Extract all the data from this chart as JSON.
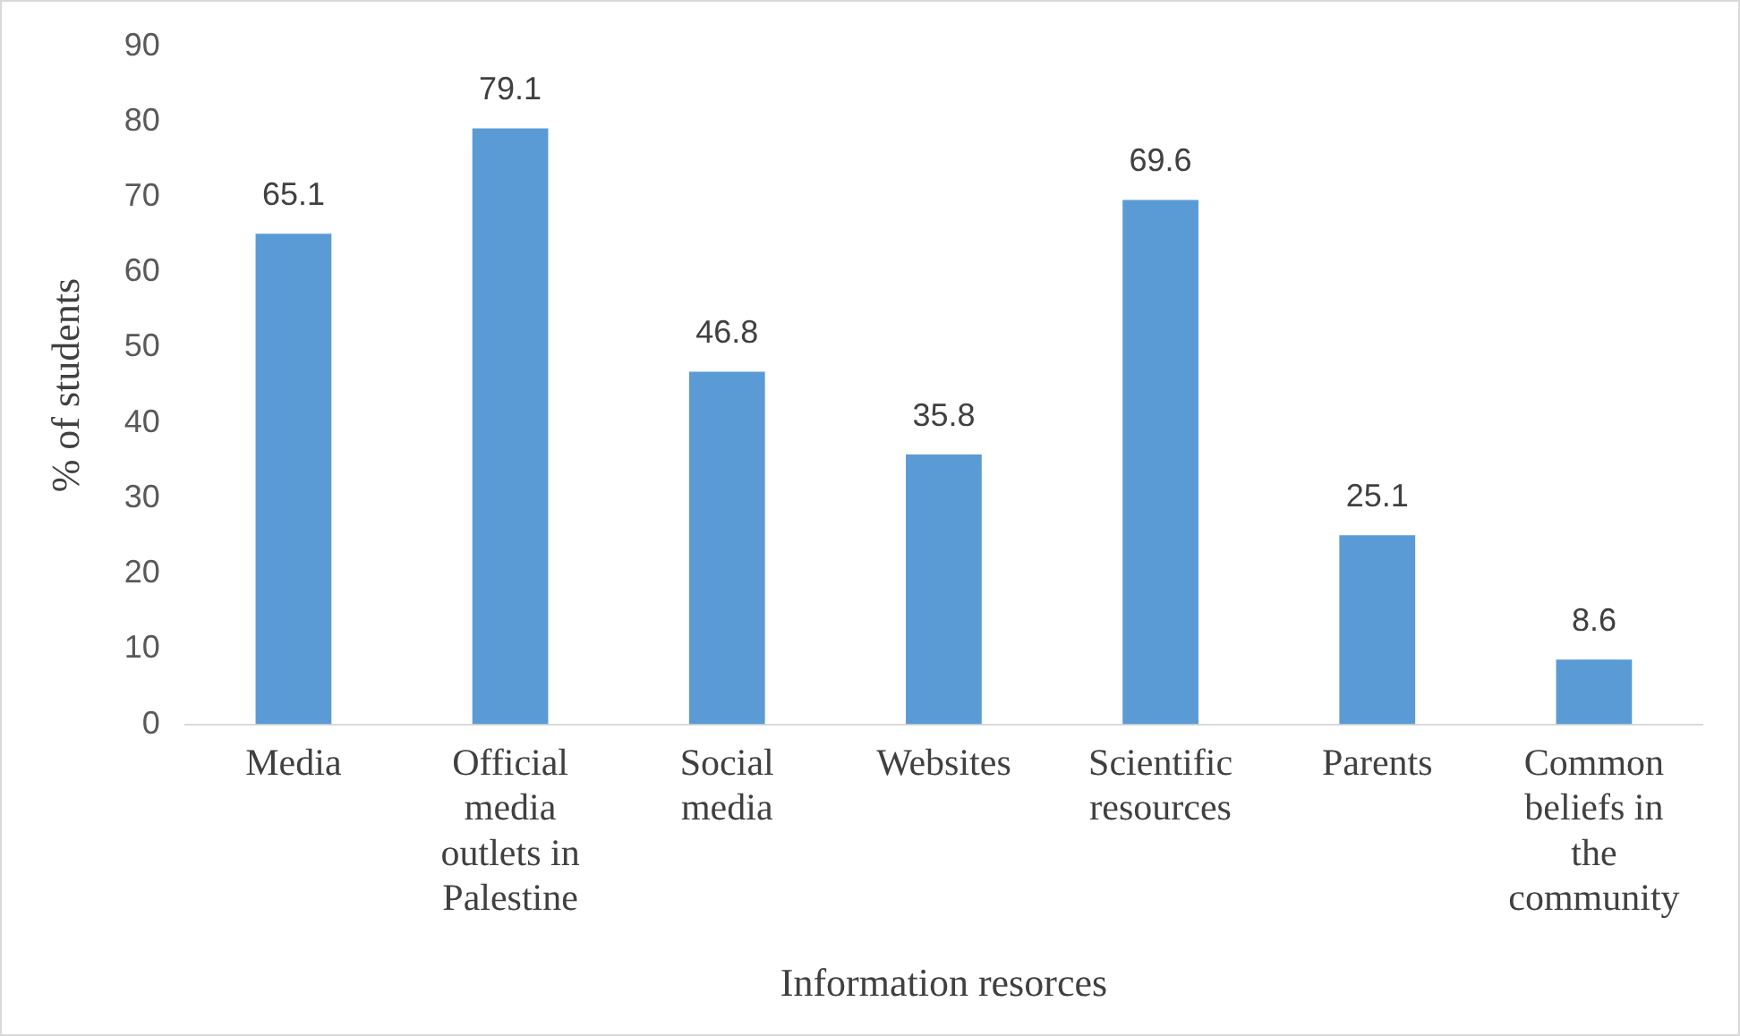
{
  "chart_data": {
    "type": "bar",
    "xlabel": "Information resorces",
    "ylabel": "% of students",
    "categories": [
      "Media",
      "Official media outlets in Palestine",
      "Social media",
      "Websites",
      "Scientific resources",
      "Parents",
      "Common beliefs in the community"
    ],
    "values": [
      65.1,
      79.1,
      46.8,
      35.8,
      69.6,
      25.1,
      8.6
    ],
    "color": "#5b9bd5",
    "ylim": [
      0,
      90
    ],
    "yticks": [
      0,
      10,
      20,
      30,
      40,
      50,
      60,
      70,
      80,
      90
    ],
    "grid": false,
    "data_labels": true,
    "legend": false
  }
}
